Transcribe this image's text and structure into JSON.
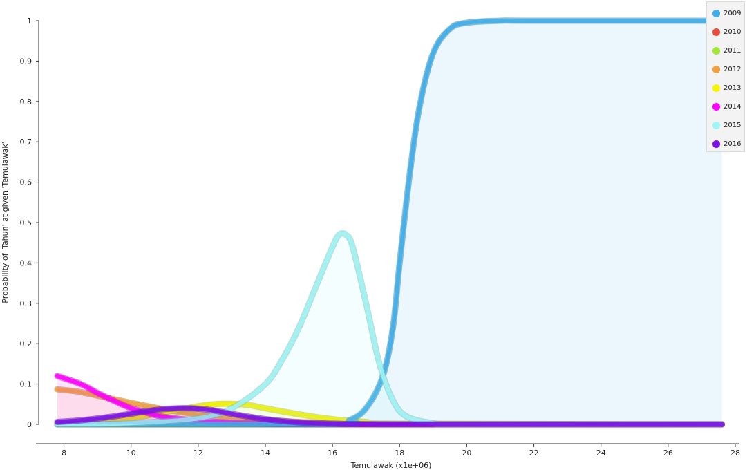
{
  "chart_data": {
    "type": "line",
    "xlabel": "Temulawak (x1e+06)",
    "ylabel": "Probability of 'Tahun' at given 'Temulawak'",
    "xlim": [
      7.2,
      28.2
    ],
    "ylim": [
      0,
      1
    ],
    "xticks": [
      "8",
      "10",
      "12",
      "14",
      "16",
      "18",
      "20",
      "22",
      "24",
      "26",
      "28"
    ],
    "yticks": [
      "0",
      "0.1",
      "0.2",
      "0.3",
      "0.4",
      "0.5",
      "0.6",
      "0.7",
      "0.8",
      "0.9",
      "1"
    ],
    "legend_position": "top-right",
    "series": [
      {
        "name": "2009",
        "color": "#3daee9",
        "x": [
          7.8,
          16.0,
          16.5,
          17.0,
          17.5,
          17.8,
          18.0,
          18.3,
          18.6,
          19.0,
          19.5,
          20.0,
          21.0,
          22.0,
          27.6
        ],
        "y": [
          0,
          0,
          0.01,
          0.04,
          0.12,
          0.24,
          0.4,
          0.62,
          0.79,
          0.92,
          0.98,
          0.995,
          1.0,
          1.0,
          1.0
        ]
      },
      {
        "name": "2010",
        "color": "#e74c3c",
        "x": [
          7.8,
          10,
          12,
          14,
          16,
          18,
          27.6
        ],
        "y": [
          0,
          0,
          0,
          0,
          0,
          0,
          0
        ]
      },
      {
        "name": "2011",
        "color": "#a3e635",
        "x": [
          7.8,
          10,
          12,
          14,
          16,
          18,
          27.6
        ],
        "y": [
          0,
          0,
          0,
          0,
          0,
          0,
          0
        ]
      },
      {
        "name": "2012",
        "color": "#f0a040",
        "x": [
          7.8,
          8.5,
          9.5,
          10.5,
          11.5,
          12.5,
          14.0,
          16.0,
          18.0,
          27.6
        ],
        "y": [
          0.087,
          0.08,
          0.062,
          0.045,
          0.03,
          0.02,
          0.01,
          0.003,
          0,
          0
        ]
      },
      {
        "name": "2013",
        "color": "#f5f500",
        "x": [
          7.8,
          9.0,
          10.0,
          11.0,
          12.0,
          12.5,
          13.0,
          13.5,
          14.0,
          15.0,
          16.0,
          17.0,
          18.0,
          27.6
        ],
        "y": [
          0.002,
          0.006,
          0.015,
          0.03,
          0.045,
          0.05,
          0.051,
          0.048,
          0.04,
          0.025,
          0.013,
          0.006,
          0.002,
          0
        ]
      },
      {
        "name": "2014",
        "color": "#ff00ff",
        "x": [
          7.8,
          8.5,
          9.0,
          9.5,
          10.0,
          10.5,
          11.0,
          12.0,
          13.0,
          14.0,
          16.0,
          27.6
        ],
        "y": [
          0.12,
          0.1,
          0.078,
          0.058,
          0.04,
          0.028,
          0.018,
          0.009,
          0.004,
          0.002,
          0,
          0
        ]
      },
      {
        "name": "2015",
        "color": "#9ff6f6",
        "x": [
          7.8,
          10.0,
          12.0,
          13.0,
          14.0,
          14.5,
          15.0,
          15.5,
          16.0,
          16.2,
          16.4,
          16.6,
          17.0,
          17.4,
          17.8,
          18.2,
          19.0,
          20.0,
          27.6
        ],
        "y": [
          0,
          0.003,
          0.015,
          0.04,
          0.1,
          0.16,
          0.24,
          0.34,
          0.44,
          0.47,
          0.47,
          0.44,
          0.3,
          0.15,
          0.06,
          0.02,
          0.003,
          0,
          0
        ]
      },
      {
        "name": "2016",
        "color": "#7c10e8",
        "x": [
          7.8,
          8.5,
          9.5,
          10.5,
          11.0,
          11.5,
          12.0,
          12.5,
          13.0,
          14.0,
          15.0,
          16.0,
          18.0,
          27.6
        ],
        "y": [
          0.006,
          0.01,
          0.02,
          0.033,
          0.038,
          0.04,
          0.039,
          0.034,
          0.026,
          0.013,
          0.005,
          0.002,
          0,
          0
        ]
      }
    ]
  }
}
